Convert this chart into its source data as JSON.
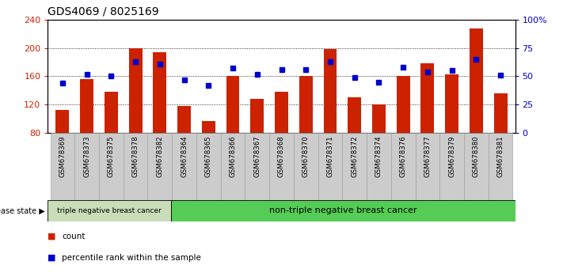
{
  "title": "GDS4069 / 8025169",
  "samples": [
    "GSM678369",
    "GSM678373",
    "GSM678375",
    "GSM678378",
    "GSM678382",
    "GSM678364",
    "GSM678365",
    "GSM678366",
    "GSM678367",
    "GSM678368",
    "GSM678370",
    "GSM678371",
    "GSM678372",
    "GSM678374",
    "GSM678376",
    "GSM678377",
    "GSM678379",
    "GSM678380",
    "GSM678381"
  ],
  "counts": [
    112,
    156,
    138,
    200,
    194,
    118,
    97,
    160,
    128,
    138,
    160,
    198,
    130,
    120,
    160,
    178,
    163,
    228,
    136
  ],
  "percentiles": [
    44,
    52,
    50,
    63,
    61,
    47,
    42,
    57,
    52,
    56,
    56,
    63,
    49,
    45,
    58,
    54,
    55,
    65,
    51
  ],
  "ylim_left": [
    80,
    240
  ],
  "ylim_right": [
    0,
    100
  ],
  "yticks_left": [
    80,
    120,
    160,
    200,
    240
  ],
  "yticks_right": [
    0,
    25,
    50,
    75,
    100
  ],
  "bar_color": "#cc2200",
  "dot_color": "#0000cc",
  "bar_bottom": 80,
  "group1_count": 5,
  "group1_label": "triple negative breast cancer",
  "group2_label": "non-triple negative breast cancer",
  "group1_color": "#c8ddb8",
  "group2_color": "#55cc55",
  "disease_label": "disease state",
  "legend_count_label": "count",
  "legend_percentile_label": "percentile rank within the sample",
  "background_color": "#ffffff",
  "title_fontsize": 10,
  "tick_label_color_left": "#cc2200",
  "tick_label_color_right": "#0000cc",
  "cell_color": "#cccccc",
  "cell_edge_color": "#999999"
}
